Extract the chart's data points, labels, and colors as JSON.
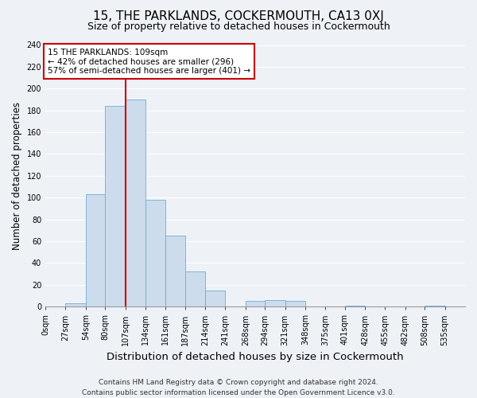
{
  "title": "15, THE PARKLANDS, COCKERMOUTH, CA13 0XJ",
  "subtitle": "Size of property relative to detached houses in Cockermouth",
  "xlabel": "Distribution of detached houses by size in Cockermouth",
  "ylabel": "Number of detached properties",
  "footer": "Contains HM Land Registry data © Crown copyright and database right 2024.\nContains public sector information licensed under the Open Government Licence v3.0.",
  "bin_labels": [
    "0sqm",
    "27sqm",
    "54sqm",
    "80sqm",
    "107sqm",
    "134sqm",
    "161sqm",
    "187sqm",
    "214sqm",
    "241sqm",
    "268sqm",
    "294sqm",
    "321sqm",
    "348sqm",
    "375sqm",
    "401sqm",
    "428sqm",
    "455sqm",
    "482sqm",
    "508sqm",
    "535sqm"
  ],
  "bar_heights": [
    0,
    3,
    103,
    184,
    190,
    98,
    65,
    32,
    15,
    0,
    5,
    6,
    5,
    0,
    0,
    1,
    0,
    0,
    0,
    1,
    0
  ],
  "bar_color": "#ccdcec",
  "bar_edge_color": "#6baed6",
  "vline_x": 107,
  "vline_color": "#cc0000",
  "annotation_text": "15 THE PARKLANDS: 109sqm\n← 42% of detached houses are smaller (296)\n57% of semi-detached houses are larger (401) →",
  "annotation_box_color": "#ffffff",
  "annotation_box_edge": "#cc0000",
  "ylim": [
    0,
    240
  ],
  "yticks": [
    0,
    20,
    40,
    60,
    80,
    100,
    120,
    140,
    160,
    180,
    200,
    220,
    240
  ],
  "title_fontsize": 11,
  "subtitle_fontsize": 9,
  "xlabel_fontsize": 9.5,
  "ylabel_fontsize": 8.5,
  "tick_fontsize": 7,
  "annotation_fontsize": 7.5,
  "footer_fontsize": 6.5,
  "background_color": "#eef2f7",
  "plot_background": "#eef2f7",
  "grid_color": "#ffffff",
  "bin_edges": [
    0,
    27,
    54,
    80,
    107,
    134,
    161,
    187,
    214,
    241,
    268,
    294,
    321,
    348,
    375,
    401,
    428,
    455,
    482,
    508,
    535,
    562
  ]
}
